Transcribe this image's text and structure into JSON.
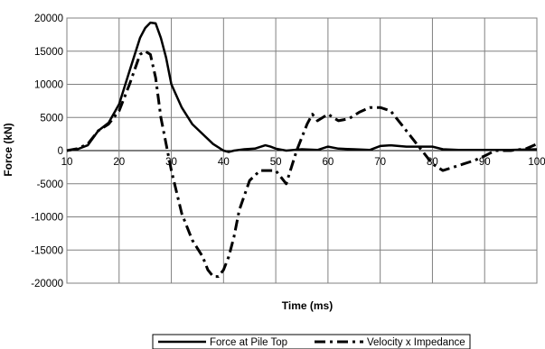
{
  "chart_data": {
    "type": "line",
    "title": "",
    "xlabel": "Time (ms)",
    "ylabel": "Force (kN)",
    "xlim": [
      10,
      100
    ],
    "ylim": [
      -20000,
      20000
    ],
    "x_ticks": [
      10,
      20,
      30,
      40,
      50,
      60,
      70,
      80,
      90,
      100
    ],
    "x_tick_labels": [
      "10",
      "20",
      "30",
      "40",
      "50",
      "60",
      "70",
      "80",
      "90",
      "100"
    ],
    "y_ticks": [
      -20000,
      -15000,
      -10000,
      -5000,
      0,
      5000,
      10000,
      15000,
      20000
    ],
    "y_tick_labels": [
      "-20000",
      "-15000",
      "-10000",
      "-5000",
      "0",
      "5000",
      "10000",
      "15000",
      "20000"
    ],
    "grid": true,
    "legend_position": "bottom",
    "series": [
      {
        "name": "Force at Pile Top",
        "line_style": "solid",
        "color": "#000000",
        "x": [
          10,
          12,
          14,
          16,
          18,
          20,
          22,
          24,
          25,
          26,
          27,
          28,
          29,
          30,
          32,
          34,
          36,
          38,
          40,
          41,
          42,
          44,
          46,
          48,
          49,
          50,
          52,
          55,
          58,
          60,
          62,
          65,
          68,
          70,
          72,
          75,
          78,
          80,
          82,
          85,
          90,
          95,
          100
        ],
        "y": [
          0,
          200,
          800,
          3000,
          4200,
          7000,
          12000,
          17000,
          18500,
          19300,
          19200,
          17000,
          14000,
          10000,
          6500,
          4000,
          2500,
          1000,
          0,
          -200,
          0,
          200,
          300,
          800,
          600,
          300,
          0,
          200,
          100,
          600,
          300,
          200,
          100,
          700,
          800,
          600,
          600,
          600,
          200,
          100,
          100,
          100,
          200
        ]
      },
      {
        "name": "Velocity x Impedance",
        "line_style": "dashed",
        "color": "#000000",
        "x": [
          10,
          12,
          14,
          16,
          18,
          20,
          22,
          24,
          25,
          26,
          27,
          28,
          30,
          32,
          34,
          36,
          37,
          38,
          39,
          40,
          41,
          42,
          43,
          45,
          47,
          49,
          50,
          52,
          54,
          56,
          57,
          58,
          60,
          62,
          64,
          66,
          68,
          70,
          72,
          74,
          76,
          78,
          80,
          82,
          84,
          86,
          88,
          90,
          92,
          95,
          98,
          100
        ],
        "y": [
          0,
          300,
          1000,
          3000,
          4000,
          6000,
          10000,
          14500,
          15000,
          14500,
          11000,
          5000,
          -3000,
          -9500,
          -13500,
          -16000,
          -18000,
          -19000,
          -19000,
          -18000,
          -16000,
          -13000,
          -9000,
          -4500,
          -3000,
          -3000,
          -3000,
          -5000,
          0,
          4000,
          5500,
          4500,
          5500,
          4500,
          4800,
          5800,
          6500,
          6500,
          6000,
          4000,
          2000,
          0,
          -2000,
          -3000,
          -2500,
          -2000,
          -1500,
          -800,
          0,
          0,
          300,
          1000
        ]
      }
    ]
  }
}
